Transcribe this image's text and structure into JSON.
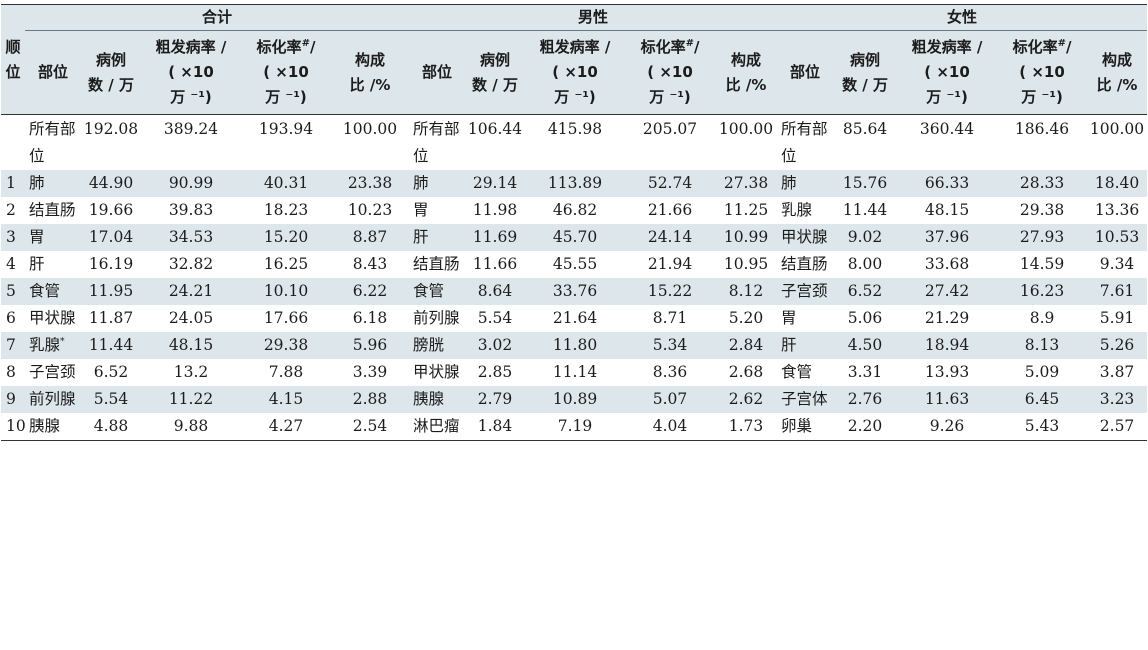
{
  "groups": {
    "total": "合计",
    "male": "男性",
    "female": "女性"
  },
  "headers": {
    "rank_l1": "顺",
    "rank_l2": "位",
    "site": "部位",
    "cases_l1": "病例",
    "cases_l2": "数 / 万",
    "crude_l1": "粗发病率 /",
    "crude_l2": "( ×10",
    "crude_l3": "万 ⁻¹)",
    "asr_l1a": "标化率",
    "asr_sup": "#",
    "asr_l1b": "/",
    "asr_l2": "( ×10",
    "asr_l3": "万 ⁻¹)",
    "prop_l1": "构成",
    "prop_l2": "比 /%"
  },
  "rows": [
    {
      "rank": "",
      "t_site": "所有部位",
      "t_cases": "192.08",
      "t_crude": "389.24",
      "t_asr": "193.94",
      "t_prop": "100.00",
      "m_site": "所有部位",
      "m_cases": "106.44",
      "m_crude": "415.98",
      "m_asr": "205.07",
      "m_prop": "100.00",
      "f_site": "所有部位",
      "f_cases": "85.64",
      "f_crude": "360.44",
      "f_asr": "186.46",
      "f_prop": "100.00"
    },
    {
      "rank": "1",
      "t_site": "肺",
      "t_cases": "44.90",
      "t_crude": "90.99",
      "t_asr": "40.31",
      "t_prop": "23.38",
      "m_site": "肺",
      "m_cases": "29.14",
      "m_crude": "113.89",
      "m_asr": "52.74",
      "m_prop": "27.38",
      "f_site": "肺",
      "f_cases": "15.76",
      "f_crude": "66.33",
      "f_asr": "28.33",
      "f_prop": "18.40"
    },
    {
      "rank": "2",
      "t_site": "结直肠",
      "t_cases": "19.66",
      "t_crude": "39.83",
      "t_asr": "18.23",
      "t_prop": "10.23",
      "m_site": "胃",
      "m_cases": "11.98",
      "m_crude": "46.82",
      "m_asr": "21.66",
      "m_prop": "11.25",
      "f_site": "乳腺",
      "f_cases": "11.44",
      "f_crude": "48.15",
      "f_asr": "29.38",
      "f_prop": "13.36"
    },
    {
      "rank": "3",
      "t_site": "胃",
      "t_cases": "17.04",
      "t_crude": "34.53",
      "t_asr": "15.20",
      "t_prop": "8.87",
      "m_site": "肝",
      "m_cases": "11.69",
      "m_crude": "45.70",
      "m_asr": "24.14",
      "m_prop": "10.99",
      "f_site": "甲状腺",
      "f_cases": "9.02",
      "f_crude": "37.96",
      "f_asr": "27.93",
      "f_prop": "10.53"
    },
    {
      "rank": "4",
      "t_site": "肝",
      "t_cases": "16.19",
      "t_crude": "32.82",
      "t_asr": "16.25",
      "t_prop": "8.43",
      "m_site": "结直肠",
      "m_cases": "11.66",
      "m_crude": "45.55",
      "m_asr": "21.94",
      "m_prop": "10.95",
      "f_site": "结直肠",
      "f_cases": "8.00",
      "f_crude": "33.68",
      "f_asr": "14.59",
      "f_prop": "9.34"
    },
    {
      "rank": "5",
      "t_site": "食管",
      "t_cases": "11.95",
      "t_crude": "24.21",
      "t_asr": "10.10",
      "t_prop": "6.22",
      "m_site": "食管",
      "m_cases": "8.64",
      "m_crude": "33.76",
      "m_asr": "15.22",
      "m_prop": "8.12",
      "f_site": "子宫颈",
      "f_cases": "6.52",
      "f_crude": "27.42",
      "f_asr": "16.23",
      "f_prop": "7.61"
    },
    {
      "rank": "6",
      "t_site": "甲状腺",
      "t_cases": "11.87",
      "t_crude": "24.05",
      "t_asr": "17.66",
      "t_prop": "6.18",
      "m_site": "前列腺",
      "m_cases": "5.54",
      "m_crude": "21.64",
      "m_asr": "8.71",
      "m_prop": "5.20",
      "f_site": "胃",
      "f_cases": "5.06",
      "f_crude": "21.29",
      "f_asr": "8.9",
      "f_prop": "5.91"
    },
    {
      "rank": "7",
      "t_site": "乳腺",
      "t_site_sup": "*",
      "t_cases": "11.44",
      "t_crude": "48.15",
      "t_asr": "29.38",
      "t_prop": "5.96",
      "m_site": "膀胱",
      "m_cases": "3.02",
      "m_crude": "11.80",
      "m_asr": "5.34",
      "m_prop": "2.84",
      "f_site": "肝",
      "f_cases": "4.50",
      "f_crude": "18.94",
      "f_asr": "8.13",
      "f_prop": "5.26"
    },
    {
      "rank": "8",
      "t_site": "子宫颈",
      "t_cases": "6.52",
      "t_crude": "13.2",
      "t_asr": "7.88",
      "t_prop": "3.39",
      "m_site": "甲状腺",
      "m_cases": "2.85",
      "m_crude": "11.14",
      "m_asr": "8.36",
      "m_prop": "2.68",
      "f_site": "食管",
      "f_cases": "3.31",
      "f_crude": "13.93",
      "f_asr": "5.09",
      "f_prop": "3.87"
    },
    {
      "rank": "9",
      "t_site": "前列腺",
      "t_cases": "5.54",
      "t_crude": "11.22",
      "t_asr": "4.15",
      "t_prop": "2.88",
      "m_site": "胰腺",
      "m_cases": "2.79",
      "m_crude": "10.89",
      "m_asr": "5.07",
      "m_prop": "2.62",
      "f_site": "子宫体",
      "f_cases": "2.76",
      "f_crude": "11.63",
      "f_asr": "6.45",
      "f_prop": "3.23"
    },
    {
      "rank": "10",
      "t_site": "胰腺",
      "t_cases": "4.88",
      "t_crude": "9.88",
      "t_asr": "4.27",
      "t_prop": "2.54",
      "m_site": "淋巴瘤",
      "m_cases": "1.84",
      "m_crude": "7.19",
      "m_asr": "4.04",
      "m_prop": "1.73",
      "f_site": "卵巢",
      "f_cases": "2.20",
      "f_crude": "9.26",
      "f_asr": "5.43",
      "f_prop": "2.57"
    }
  ],
  "colors": {
    "header_bg": "#dde6ea",
    "stripe_bg": "#dde6ea",
    "rule": "#333333"
  }
}
